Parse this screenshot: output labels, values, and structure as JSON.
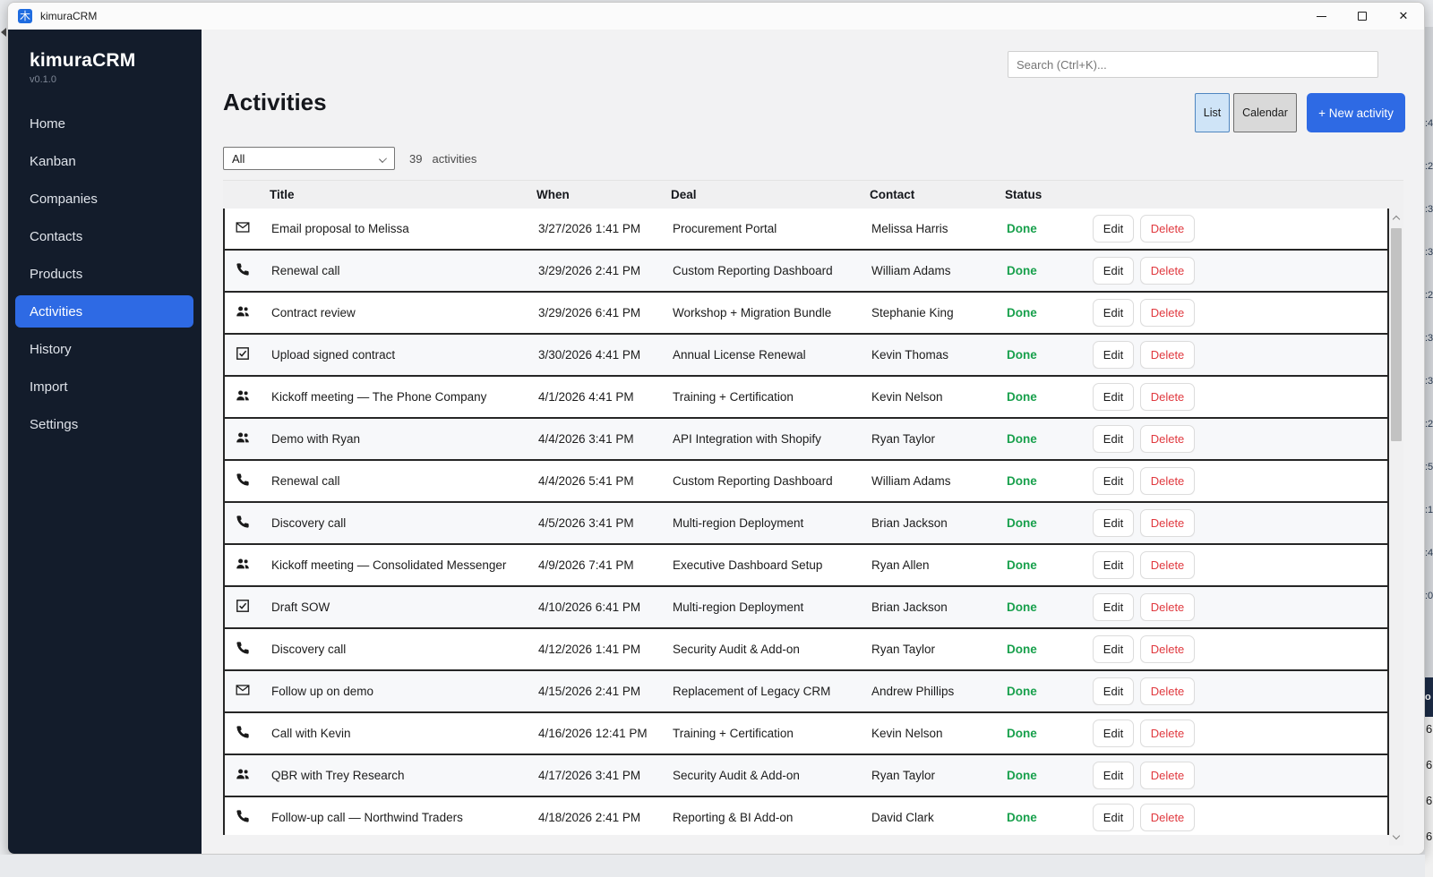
{
  "window": {
    "title": "kimuraCRM"
  },
  "app_icon": {
    "glyph": "木"
  },
  "icons": {
    "close_glyph": "✕"
  },
  "sidebar": {
    "brand": "kimuraCRM",
    "version": "v0.1.0",
    "items": [
      {
        "label": "Home",
        "active": false
      },
      {
        "label": "Kanban",
        "active": false
      },
      {
        "label": "Companies",
        "active": false
      },
      {
        "label": "Contacts",
        "active": false
      },
      {
        "label": "Products",
        "active": false
      },
      {
        "label": "Activities",
        "active": true
      },
      {
        "label": "History",
        "active": false
      },
      {
        "label": "Import",
        "active": false
      },
      {
        "label": "Settings",
        "active": false
      }
    ]
  },
  "topbar": {
    "search_placeholder": "Search (Ctrl+K)..."
  },
  "page": {
    "title": "Activities",
    "filter_value": "All",
    "count": "39",
    "count_unit": "activities",
    "list_button": "List",
    "calendar_button": "Calendar",
    "new_activity_button": "+ New activity"
  },
  "table": {
    "columns": [
      "Title",
      "When",
      "Deal",
      "Contact",
      "Status"
    ],
    "edit_label": "Edit",
    "delete_label": "Delete",
    "rows": [
      {
        "type": "email",
        "title": "Email proposal to Melissa",
        "when": "3/27/2026 1:41 PM",
        "deal": "Procurement Portal",
        "contact": "Melissa Harris",
        "status": "Done"
      },
      {
        "type": "call",
        "title": "Renewal call",
        "when": "3/29/2026 2:41 PM",
        "deal": "Custom Reporting Dashboard",
        "contact": "William Adams",
        "status": "Done"
      },
      {
        "type": "meeting",
        "title": "Contract review",
        "when": "3/29/2026 6:41 PM",
        "deal": "Workshop + Migration Bundle",
        "contact": "Stephanie King",
        "status": "Done"
      },
      {
        "type": "task",
        "title": "Upload signed contract",
        "when": "3/30/2026 4:41 PM",
        "deal": "Annual License Renewal",
        "contact": "Kevin Thomas",
        "status": "Done"
      },
      {
        "type": "meeting",
        "title": "Kickoff meeting — The Phone Company",
        "when": "4/1/2026 4:41 PM",
        "deal": "Training + Certification",
        "contact": "Kevin Nelson",
        "status": "Done"
      },
      {
        "type": "meeting",
        "title": "Demo with Ryan",
        "when": "4/4/2026 3:41 PM",
        "deal": "API Integration with Shopify",
        "contact": "Ryan Taylor",
        "status": "Done"
      },
      {
        "type": "call",
        "title": "Renewal call",
        "when": "4/4/2026 5:41 PM",
        "deal": "Custom Reporting Dashboard",
        "contact": "William Adams",
        "status": "Done"
      },
      {
        "type": "call",
        "title": "Discovery call",
        "when": "4/5/2026 3:41 PM",
        "deal": "Multi-region Deployment",
        "contact": "Brian Jackson",
        "status": "Done"
      },
      {
        "type": "meeting",
        "title": "Kickoff meeting — Consolidated Messenger",
        "when": "4/9/2026 7:41 PM",
        "deal": "Executive Dashboard Setup",
        "contact": "Ryan Allen",
        "status": "Done"
      },
      {
        "type": "task",
        "title": "Draft SOW",
        "when": "4/10/2026 6:41 PM",
        "deal": "Multi-region Deployment",
        "contact": "Brian Jackson",
        "status": "Done"
      },
      {
        "type": "call",
        "title": "Discovery call",
        "when": "4/12/2026 1:41 PM",
        "deal": "Security Audit & Add-on",
        "contact": "Ryan Taylor",
        "status": "Done"
      },
      {
        "type": "email",
        "title": "Follow up on demo",
        "when": "4/15/2026 2:41 PM",
        "deal": "Replacement of Legacy CRM",
        "contact": "Andrew Phillips",
        "status": "Done"
      },
      {
        "type": "call",
        "title": "Call with Kevin",
        "when": "4/16/2026 12:41 PM",
        "deal": "Training + Certification",
        "contact": "Kevin Nelson",
        "status": "Done"
      },
      {
        "type": "meeting",
        "title": "QBR with Trey Research",
        "when": "4/17/2026 3:41 PM",
        "deal": "Security Audit & Add-on",
        "contact": "Ryan Taylor",
        "status": "Done"
      },
      {
        "type": "call",
        "title": "Follow-up call — Northwind Traders",
        "when": "4/18/2026 2:41 PM",
        "deal": "Reporting & BI Add-on",
        "contact": "David Clark",
        "status": "Done"
      }
    ]
  },
  "background_window": {
    "header_fragment": "o",
    "time_fragments": [
      ":4",
      ":2",
      ":3",
      ":3",
      ":2",
      ":3",
      ":3",
      ":2",
      ":5",
      ":1",
      ":4",
      ":0"
    ],
    "digit_fragments": [
      "6",
      "6",
      "6",
      "6"
    ]
  },
  "colors": {
    "accent": "#2e6ae4",
    "sidebar_bg": "#131c2b",
    "done_green": "#18a04c",
    "delete_red": "#e0393f",
    "list_selected_bg": "#cfe4f7"
  }
}
